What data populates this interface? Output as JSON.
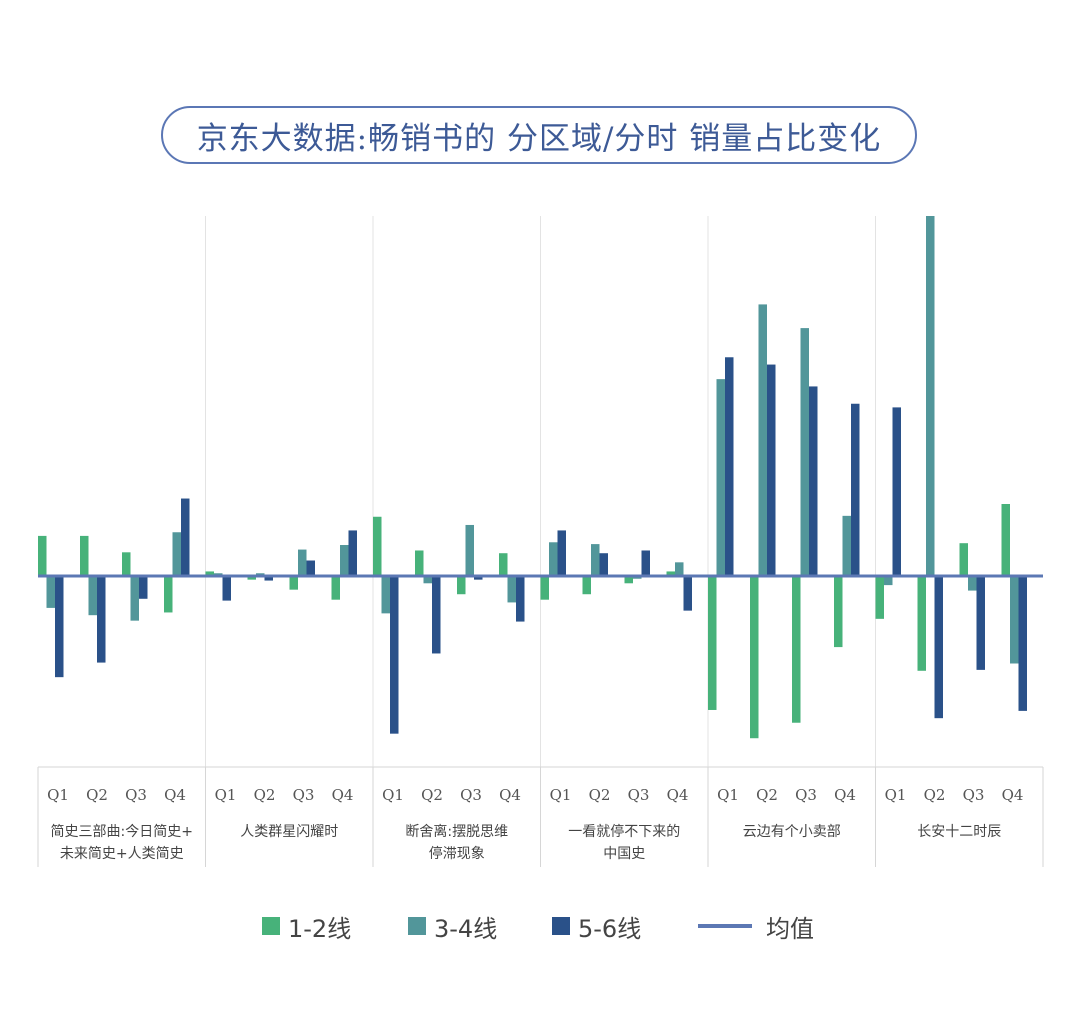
{
  "title": "京东大数据:畅销书的 分区域/分时 销量占比变化",
  "chart_data": {
    "type": "bar",
    "groups": [
      {
        "name": "简史三部曲:今日简史+未来简史+人类简史",
        "lines": [
          "简史三部曲:今日简史+",
          "未来简史+人类简史"
        ]
      },
      {
        "name": "人类群星闪耀时",
        "lines": [
          "人类群星闪耀时"
        ]
      },
      {
        "name": "断舍离:摆脱思维停滞现象",
        "lines": [
          "断舍离:摆脱思维",
          "停滞现象"
        ]
      },
      {
        "name": "一看就停不下来的中国史",
        "lines": [
          "一看就停不下来的",
          "中国史"
        ]
      },
      {
        "name": "云边有个小卖部",
        "lines": [
          "云边有个小卖部"
        ]
      },
      {
        "name": "长安十二时辰",
        "lines": [
          "长安十二时辰"
        ]
      }
    ],
    "quarters": [
      "Q1",
      "Q2",
      "Q3",
      "Q4"
    ],
    "series": [
      {
        "name": "1-2线",
        "color": "#47b27a",
        "values": [
          [
            4.4,
            4.4,
            2.6,
            -4.0
          ],
          [
            0.5,
            -0.4,
            -1.5,
            -2.6
          ],
          [
            6.5,
            2.8,
            -2.0,
            2.5
          ],
          [
            -2.6,
            -2.0,
            -0.8,
            0.5
          ],
          [
            -14.7,
            -17.8,
            -16.1,
            -7.8
          ],
          [
            -4.7,
            -10.4,
            3.6,
            7.9
          ]
        ]
      },
      {
        "name": "3-4线",
        "color": "#52969a",
        "values": [
          [
            -3.5,
            -4.3,
            -4.9,
            4.8
          ],
          [
            0.3,
            0.3,
            2.9,
            3.4
          ],
          [
            -4.1,
            -0.8,
            5.6,
            -2.9
          ],
          [
            3.7,
            3.5,
            -0.3,
            1.5
          ],
          [
            21.6,
            29.8,
            27.2,
            6.6
          ],
          [
            -1.0,
            39.5,
            -1.6,
            -9.6
          ]
        ]
      },
      {
        "name": "5-6线",
        "color": "#2a5189",
        "values": [
          [
            -11.1,
            -9.5,
            -2.5,
            8.5
          ],
          [
            -2.7,
            -0.5,
            1.7,
            5.0
          ],
          [
            -17.3,
            -8.5,
            -0.4,
            -5.0
          ],
          [
            5.0,
            2.5,
            2.8,
            -3.8
          ],
          [
            24.0,
            23.2,
            20.8,
            18.9
          ],
          [
            18.5,
            -15.6,
            -10.3,
            -14.8
          ]
        ]
      }
    ],
    "mean": {
      "name": "均值",
      "value": 0,
      "color": "#5c78b4"
    },
    "ylim": [
      -21,
      39.5
    ],
    "grid": false,
    "legend_position": "bottom"
  }
}
